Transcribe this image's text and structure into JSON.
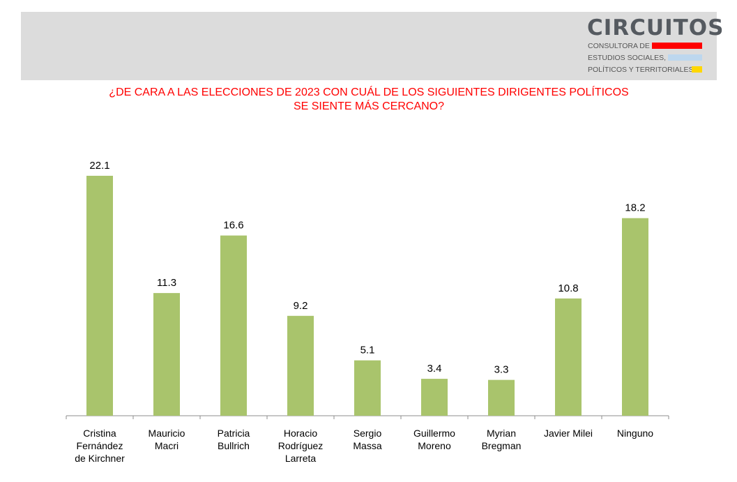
{
  "logo": {
    "word": "CIRCUITOS",
    "line1": "CONSULTORA DE",
    "line2": "ESTUDIOS SOCIALES,",
    "line3": "POLÍTICOS Y TERRITORIALES",
    "colors": [
      "#ff0000",
      "#bdd7ee",
      "#ffd700"
    ]
  },
  "title": {
    "line1": "¿DE CARA A LAS ELECCIONES DE 2023 CON CUÁL DE LOS SIGUIENTES DIRIGENTES POLÍTICOS",
    "line2": "SE SIENTE MÁS CERCANO?"
  },
  "chart_data": {
    "type": "bar",
    "categories": [
      [
        "Cristina",
        "Fernández",
        "de Kirchner"
      ],
      [
        "Mauricio",
        "Macri"
      ],
      [
        "Patricia",
        "Bullrich"
      ],
      [
        "Horacio",
        "Rodríguez",
        "Larreta"
      ],
      [
        "Sergio",
        "Massa"
      ],
      [
        "Guillermo",
        "Moreno"
      ],
      [
        "Myrian",
        "Bregman"
      ],
      [
        "Javier Milei"
      ],
      [
        "Ninguno"
      ]
    ],
    "values": [
      22.1,
      11.3,
      16.6,
      9.2,
      5.1,
      3.4,
      3.3,
      10.8,
      18.2
    ],
    "data_labels": [
      "22.1",
      "11.3",
      "16.6",
      "9.2",
      "5.1",
      "3.4",
      "3.3",
      "10.8",
      "18.2"
    ],
    "bar_color": "#a9c46c",
    "ylim": [
      0,
      25
    ]
  }
}
